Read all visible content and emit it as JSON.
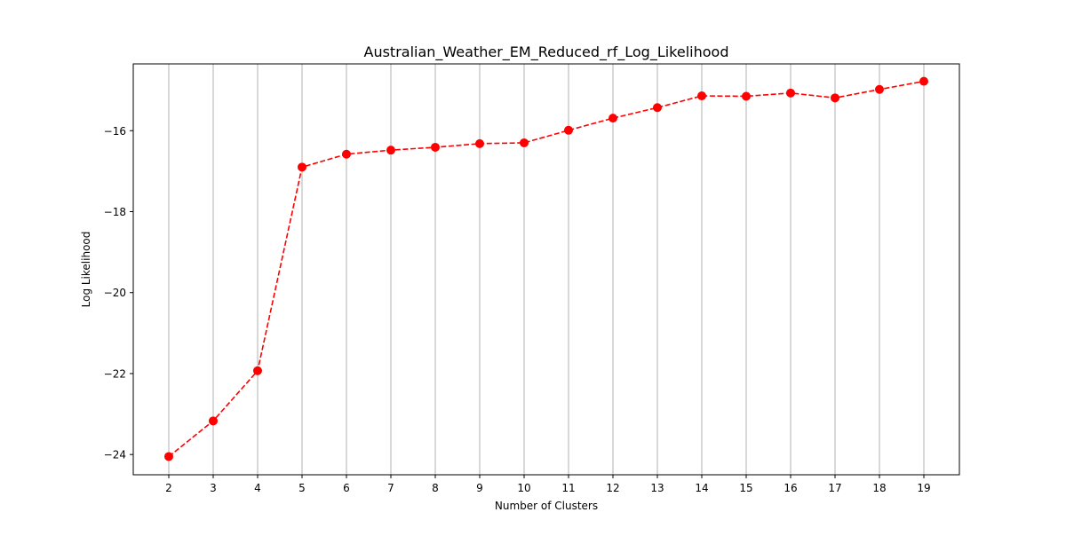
{
  "chart_data": {
    "type": "line",
    "title": "Australian_Weather_EM_Reduced_rf_Log_Likelihood",
    "xlabel": "Number of Clusters",
    "ylabel": "Log Likelihood",
    "x": [
      2,
      3,
      4,
      5,
      6,
      7,
      8,
      9,
      10,
      11,
      12,
      13,
      14,
      15,
      16,
      17,
      18,
      19
    ],
    "series": [
      {
        "values": [
          -24.05,
          -23.17,
          -21.93,
          -16.9,
          -16.58,
          -16.48,
          -16.41,
          -16.32,
          -16.3,
          -15.99,
          -15.69,
          -15.43,
          -15.14,
          -15.15,
          -15.07,
          -15.19,
          -14.98,
          -14.78
        ],
        "color": "#ff0000",
        "line_style": "dashed",
        "marker": "circle"
      }
    ],
    "xlim": [
      1.2,
      19.8
    ],
    "ylim": [
      -24.5,
      -14.35
    ],
    "x_ticks": [
      "2",
      "3",
      "4",
      "5",
      "6",
      "7",
      "8",
      "9",
      "10",
      "11",
      "12",
      "13",
      "14",
      "15",
      "16",
      "17",
      "18",
      "19"
    ],
    "y_ticks": [
      -24,
      -22,
      -20,
      -18,
      -16
    ],
    "y_tick_labels": [
      "−24",
      "−22",
      "−20",
      "−18",
      "−16"
    ],
    "grid": "x-vertical",
    "grid_color": "#b0b0b0",
    "legend": "none"
  }
}
